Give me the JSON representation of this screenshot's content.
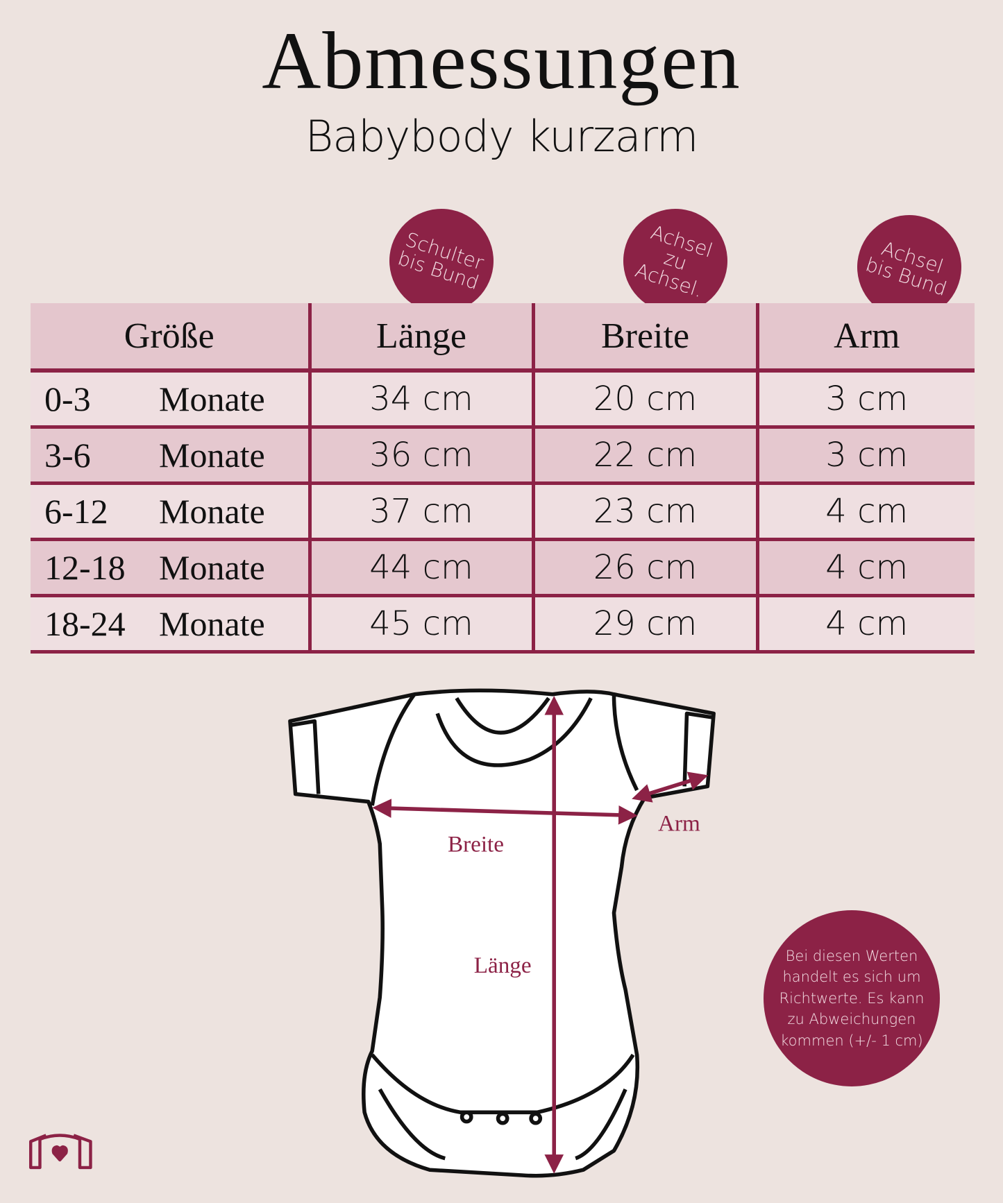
{
  "title": "Abmessungen",
  "subtitle": "Babybody kurzarm",
  "badges": [
    "Schulter\nbis Bund",
    "Achsel\nzu\nAchsel.",
    "Achsel\nbis Bund"
  ],
  "table": {
    "headers": [
      "Größe",
      "Länge",
      "Breite",
      "Arm"
    ],
    "rows": [
      {
        "range": "0-3",
        "unit": "Monate",
        "laenge": "34 cm",
        "breite": "20 cm",
        "arm": "3 cm"
      },
      {
        "range": "3-6",
        "unit": "Monate",
        "laenge": "36 cm",
        "breite": "22 cm",
        "arm": "3 cm"
      },
      {
        "range": "6-12",
        "unit": "Monate",
        "laenge": "37 cm",
        "breite": "23 cm",
        "arm": "4 cm"
      },
      {
        "range": "12-18",
        "unit": "Monate",
        "laenge": "44 cm",
        "breite": "26 cm",
        "arm": "4 cm"
      },
      {
        "range": "18-24",
        "unit": "Monate",
        "laenge": "45 cm",
        "breite": "29 cm",
        "arm": "4 cm"
      }
    ]
  },
  "diagram": {
    "breite": "Breite",
    "laenge": "Länge",
    "arm": "Arm"
  },
  "note": "Bei diesen Werten\nhandelt es sich um\nRichtwerte. Es kann\nzu Abweichungen\nkommen (+/- 1 cm)",
  "colors": {
    "accent": "#8c2246",
    "background": "#ede3df",
    "header": "#e4c6cd"
  },
  "logo_icon": "shirt-heart-icon"
}
